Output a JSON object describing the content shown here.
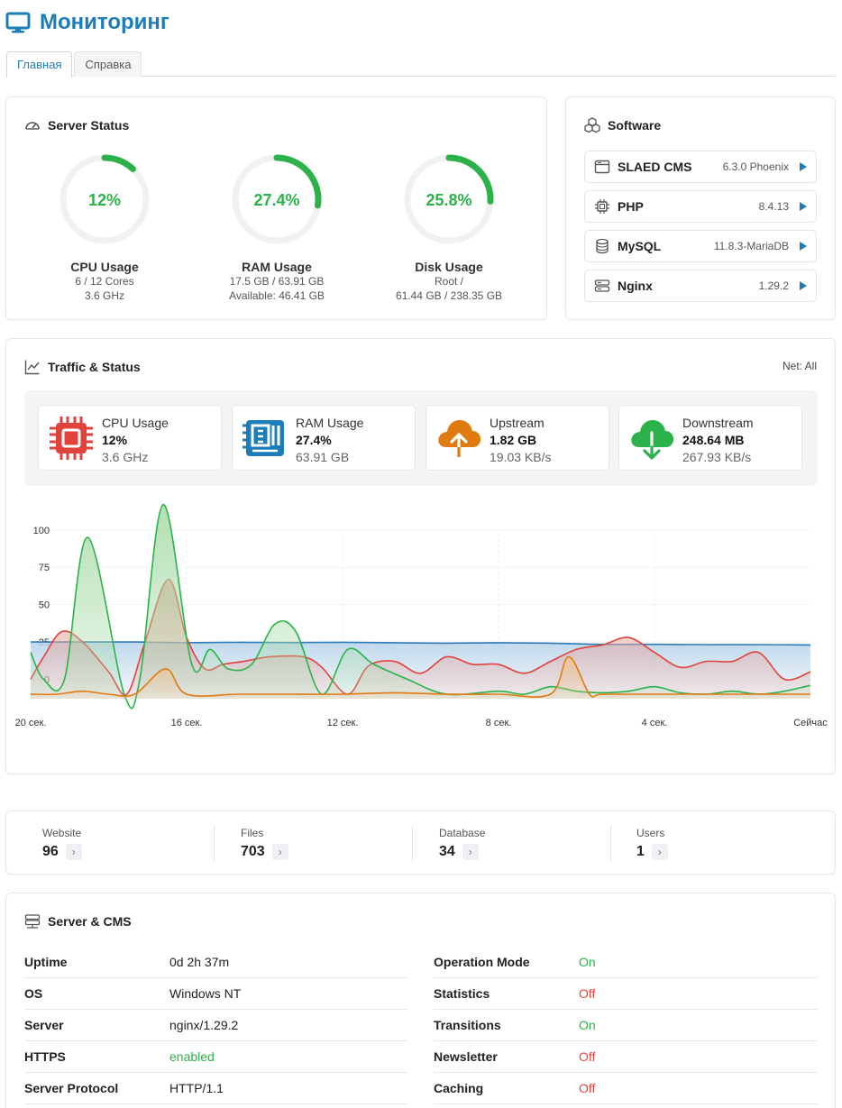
{
  "page": {
    "title": "Мониторинг"
  },
  "tabs": [
    {
      "label": "Главная",
      "active": true
    },
    {
      "label": "Справка",
      "active": false
    }
  ],
  "server_status": {
    "title": "Server Status",
    "gauges": [
      {
        "label": "CPU Usage",
        "percent": 12,
        "percent_text": "12%",
        "line1": "6 / 12 Cores",
        "line2": "3.6 GHz"
      },
      {
        "label": "RAM Usage",
        "percent": 27.4,
        "percent_text": "27.4%",
        "line1": "17.5 GB / 63.91 GB",
        "line2": "Available: 46.41 GB"
      },
      {
        "label": "Disk Usage",
        "percent": 25.8,
        "percent_text": "25.8%",
        "line1": "Root /",
        "line2": "61.44 GB / 238.35 GB"
      }
    ],
    "colors": {
      "arc": "#2cb24a",
      "track": "#f0f1f3"
    }
  },
  "software": {
    "title": "Software",
    "items": [
      {
        "name": "SLAED CMS",
        "version": "6.3.0 Phoenix",
        "icon": "window-icon"
      },
      {
        "name": "PHP",
        "version": "8.4.13",
        "icon": "chip-icon"
      },
      {
        "name": "MySQL",
        "version": "11.8.3-MariaDB",
        "icon": "database-icon"
      },
      {
        "name": "Nginx",
        "version": "1.29.2",
        "icon": "server-icon"
      }
    ]
  },
  "traffic": {
    "title": "Traffic & Status",
    "net_filter": "Net: All",
    "stats": [
      {
        "label": "CPU Usage",
        "value": "12%",
        "sub": "3.6 GHz",
        "icon": "cpu-icon",
        "color": "#e2423c"
      },
      {
        "label": "RAM Usage",
        "value": "27.4%",
        "sub": "63.91 GB",
        "icon": "ram-icon",
        "color": "#1d7db8"
      },
      {
        "label": "Upstream",
        "value": "1.82 GB",
        "sub": "19.03 KB/s",
        "icon": "cloud-upload-icon",
        "color": "#e07b12"
      },
      {
        "label": "Downstream",
        "value": "248.64 MB",
        "sub": "267.93 KB/s",
        "icon": "cloud-download-icon",
        "color": "#2cb24a"
      }
    ]
  },
  "chart_data": {
    "type": "area",
    "x": [
      "20 сек.",
      "16 сек.",
      "12 сек.",
      "8 сек.",
      "4 сек.",
      "Сейчас"
    ],
    "y_ticks": [
      0,
      25,
      50,
      75,
      100
    ],
    "ylim": [
      -13,
      118
    ],
    "series": [
      {
        "color": "#2f7ab8",
        "fill": "#b9d5ea",
        "points": [
          [
            0,
            25
          ],
          [
            2,
            25
          ],
          [
            4,
            25
          ],
          [
            6,
            24.5
          ],
          [
            8,
            24.8
          ],
          [
            10,
            24.6
          ],
          [
            12,
            24.8
          ],
          [
            14,
            24.5
          ],
          [
            16,
            24.2
          ],
          [
            18,
            24.5
          ],
          [
            20,
            24.2
          ],
          [
            22,
            23.4
          ],
          [
            24,
            23.4
          ],
          [
            26,
            23.2
          ],
          [
            28,
            23.2
          ],
          [
            30,
            23
          ]
        ]
      },
      {
        "color": "#e2423c",
        "fill": "#e9a39b",
        "points": [
          [
            0,
            0
          ],
          [
            0.5,
            15
          ],
          [
            1.2,
            32
          ],
          [
            2,
            25
          ],
          [
            3,
            5
          ],
          [
            3.7,
            -10
          ],
          [
            4.4,
            25
          ],
          [
            5.3,
            67
          ],
          [
            6,
            28
          ],
          [
            6.7,
            7
          ],
          [
            7.4,
            10
          ],
          [
            8.2,
            12
          ],
          [
            9.2,
            15
          ],
          [
            10.5,
            15
          ],
          [
            11.2,
            8
          ],
          [
            12.2,
            -10
          ],
          [
            13,
            9
          ],
          [
            14,
            12
          ],
          [
            15,
            4
          ],
          [
            16,
            15
          ],
          [
            17,
            10
          ],
          [
            18,
            10
          ],
          [
            19,
            4
          ],
          [
            20,
            12
          ],
          [
            21,
            20
          ],
          [
            22,
            23
          ],
          [
            23,
            28
          ],
          [
            24,
            18
          ],
          [
            25,
            8
          ],
          [
            26,
            12
          ],
          [
            27,
            12
          ],
          [
            28,
            18
          ],
          [
            29,
            0
          ],
          [
            30,
            5
          ]
        ]
      },
      {
        "color": "#2cb24a",
        "fill": "#a9dca9",
        "points": [
          [
            0,
            18
          ],
          [
            0.5,
            0
          ],
          [
            1.3,
            0
          ],
          [
            2.2,
            95
          ],
          [
            3.6,
            -10
          ],
          [
            4.2,
            0
          ],
          [
            5.1,
            117
          ],
          [
            6.2,
            10
          ],
          [
            6.9,
            20
          ],
          [
            7.6,
            7
          ],
          [
            8.5,
            10
          ],
          [
            9.4,
            37
          ],
          [
            10.2,
            32
          ],
          [
            11.2,
            -10
          ],
          [
            12.2,
            20
          ],
          [
            13.2,
            10
          ],
          [
            14.5,
            0
          ],
          [
            16,
            -10
          ],
          [
            18,
            -8
          ],
          [
            19,
            -10
          ],
          [
            20,
            -5
          ],
          [
            21,
            -8
          ],
          [
            22,
            -9
          ],
          [
            23,
            -8
          ],
          [
            24,
            -5
          ],
          [
            25,
            -9
          ],
          [
            26,
            -10
          ],
          [
            27,
            -8
          ],
          [
            28,
            -10
          ],
          [
            29,
            -8
          ],
          [
            30,
            -4
          ]
        ]
      },
      {
        "color": "#e07b12",
        "fill": "#edc59a",
        "points": [
          [
            0,
            -10
          ],
          [
            1,
            -10
          ],
          [
            2,
            -8
          ],
          [
            3,
            -10
          ],
          [
            4,
            -10
          ],
          [
            5.2,
            7
          ],
          [
            6,
            -10
          ],
          [
            8,
            -10
          ],
          [
            10,
            -10
          ],
          [
            12,
            -10
          ],
          [
            14,
            -9
          ],
          [
            16,
            -10
          ],
          [
            18,
            -10
          ],
          [
            20,
            -10
          ],
          [
            20.7,
            15
          ],
          [
            21.5,
            -10
          ],
          [
            22,
            -10
          ],
          [
            24,
            -10
          ],
          [
            26,
            -10
          ],
          [
            28,
            -10
          ],
          [
            30,
            -10
          ]
        ]
      }
    ]
  },
  "summary": [
    {
      "label": "Website",
      "value": "96"
    },
    {
      "label": "Files",
      "value": "703"
    },
    {
      "label": "Database",
      "value": "34"
    },
    {
      "label": "Users",
      "value": "1"
    }
  ],
  "server_cms": {
    "title": "Server & CMS",
    "left": [
      {
        "key": "Uptime",
        "value": "0d 2h 37m",
        "status": ""
      },
      {
        "key": "OS",
        "value": "Windows NT",
        "status": ""
      },
      {
        "key": "Server",
        "value": "nginx/1.29.2",
        "status": ""
      },
      {
        "key": "HTTPS",
        "value": "enabled",
        "status": "on"
      },
      {
        "key": "Server Protocol",
        "value": "HTTP/1.1",
        "status": ""
      }
    ],
    "right": [
      {
        "key": "Operation Mode",
        "value": "On",
        "status": "on"
      },
      {
        "key": "Statistics",
        "value": "Off",
        "status": "off"
      },
      {
        "key": "Transitions",
        "value": "On",
        "status": "on"
      },
      {
        "key": "Newsletter",
        "value": "Off",
        "status": "off"
      },
      {
        "key": "Caching",
        "value": "Off",
        "status": "off"
      }
    ]
  }
}
